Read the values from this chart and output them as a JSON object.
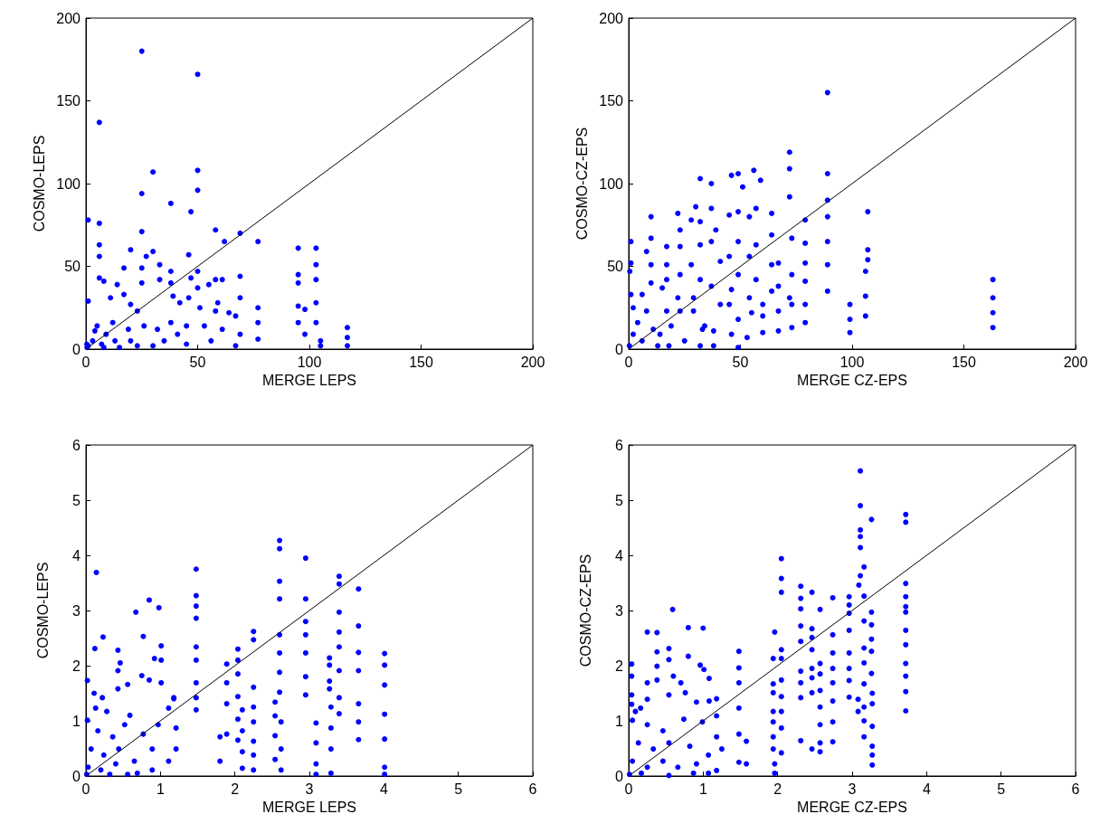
{
  "chart_data": [
    {
      "type": "scatter",
      "xlabel": "MERGE LEPS",
      "ylabel": "COSMO-LEPS",
      "xlim": [
        0,
        200
      ],
      "ylim": [
        0,
        200
      ],
      "xticks": [
        0,
        50,
        100,
        150,
        200
      ],
      "yticks": [
        0,
        50,
        100,
        150,
        200
      ],
      "grid": false,
      "series": [
        {
          "marker": "circle",
          "color": "#0000ff",
          "x": [
            25,
            50,
            6,
            50,
            30,
            25,
            38,
            50,
            47,
            1,
            6,
            69,
            77,
            62,
            58,
            95,
            103,
            103,
            95,
            103,
            95,
            103,
            95,
            98,
            103,
            105,
            117,
            117,
            117,
            77,
            77,
            69,
            69,
            67,
            67,
            58,
            61,
            58,
            55,
            50,
            50,
            47,
            46,
            38,
            38,
            33,
            33,
            30,
            27,
            25,
            25,
            25,
            20,
            17,
            14,
            6,
            8,
            6,
            6,
            1,
            11,
            17,
            20,
            23,
            39,
            42,
            46,
            51,
            59,
            64,
            56,
            45,
            35,
            30,
            20,
            15,
            9,
            5,
            3,
            1,
            7,
            12,
            19,
            26,
            32,
            38,
            41,
            45,
            53,
            61,
            69,
            77,
            95,
            98,
            105,
            4,
            0.5,
            0.4,
            8,
            13,
            23
          ],
          "values": [
            180,
            166,
            137,
            108,
            107,
            94,
            88,
            96,
            83,
            78,
            76,
            70,
            65,
            65,
            72,
            61,
            61,
            51,
            45,
            42,
            40,
            28,
            26,
            24,
            16,
            5,
            13,
            2,
            7,
            25,
            6,
            44,
            31,
            20,
            2,
            42,
            42,
            23,
            39,
            47,
            37,
            43,
            57,
            47,
            40,
            51,
            42,
            59,
            56,
            71,
            49,
            40,
            60,
            49,
            39,
            43,
            41,
            56,
            63,
            29,
            31,
            33,
            27,
            23,
            32,
            28,
            31,
            25,
            28,
            22,
            5,
            3,
            5,
            2,
            5,
            1,
            9,
            14,
            5,
            2,
            3,
            16,
            12,
            14,
            12,
            16,
            9,
            14,
            14,
            12,
            9,
            16,
            16,
            9,
            2,
            11,
            1,
            3,
            1,
            5,
            2
          ]
        },
        {
          "type": "line",
          "color": "#000000",
          "line_style": "solid",
          "x": [
            0,
            200
          ],
          "values": [
            0,
            200
          ]
        }
      ]
    },
    {
      "type": "scatter",
      "xlabel": "MERGE CZ-EPS",
      "ylabel": "COSMO-CZ-EPS",
      "xlim": [
        0,
        200
      ],
      "ylim": [
        0,
        200
      ],
      "xticks": [
        0,
        50,
        100,
        150,
        200
      ],
      "yticks": [
        0,
        50,
        100,
        150,
        200
      ],
      "grid": false,
      "series": [
        {
          "marker": "circle",
          "color": "#0000ff",
          "x": [
            89,
            72,
            72,
            89,
            46,
            49,
            56,
            59,
            32,
            37,
            51,
            72,
            89,
            30,
            22,
            10,
            107,
            107,
            107,
            106,
            106,
            106,
            99,
            99,
            99,
            163,
            163,
            163,
            163,
            89,
            89,
            89,
            89,
            79,
            79,
            79,
            79,
            79,
            79,
            73,
            73,
            73,
            73,
            67,
            67,
            67,
            67,
            64,
            64,
            64,
            64,
            60,
            60,
            57,
            57,
            57,
            54,
            54,
            54,
            53,
            49,
            49,
            49,
            49,
            49,
            45,
            45,
            45,
            46,
            39,
            41,
            37,
            37,
            37,
            38,
            38,
            32,
            32,
            32,
            33,
            28,
            28,
            29,
            23,
            23,
            23,
            23,
            17,
            17,
            17,
            15,
            14,
            10,
            10,
            10,
            8,
            1,
            1,
            0.5,
            1,
            6,
            2,
            8,
            4,
            2,
            0.3,
            6,
            11,
            13,
            19,
            25,
            32,
            17,
            22,
            29,
            34,
            41,
            46,
            55,
            60,
            72,
            18
          ],
          "values": [
            155,
            119,
            109,
            106,
            105,
            106,
            108,
            102,
            103,
            100,
            98,
            92,
            90,
            86,
            82,
            80,
            83,
            60,
            54,
            47,
            32,
            20,
            27,
            18,
            10,
            42,
            31,
            22,
            13,
            80,
            65,
            51,
            35,
            78,
            64,
            52,
            41,
            27,
            16,
            67,
            45,
            27,
            13,
            52,
            38,
            23,
            11,
            82,
            69,
            51,
            35,
            10,
            27,
            85,
            63,
            42,
            80,
            56,
            31,
            7,
            83,
            65,
            45,
            18,
            1,
            81,
            56,
            27,
            9,
            72,
            53,
            85,
            65,
            38,
            11,
            2,
            77,
            63,
            42,
            12,
            78,
            51,
            23,
            72,
            62,
            45,
            23,
            62,
            51,
            42,
            37,
            9,
            67,
            51,
            40,
            59,
            65,
            52,
            47,
            33,
            33,
            25,
            23,
            16,
            9,
            2,
            5,
            12,
            2,
            14,
            5,
            2,
            23,
            31,
            31,
            14,
            27,
            36,
            22,
            20,
            31,
            2
          ]
        },
        {
          "type": "line",
          "color": "#000000",
          "line_style": "solid",
          "x": [
            0,
            200
          ],
          "values": [
            0,
            200
          ]
        }
      ]
    },
    {
      "type": "scatter",
      "xlabel": "MERGE LEPS",
      "ylabel": "COSMO-LEPS",
      "xlim": [
        0,
        6
      ],
      "ylim": [
        0,
        6
      ],
      "xticks": [
        0,
        1,
        2,
        3,
        4,
        5,
        6
      ],
      "yticks": [
        0,
        1,
        2,
        3,
        4,
        5,
        6
      ],
      "grid": false,
      "series": [
        {
          "marker": "circle",
          "color": "#0000ff",
          "x": [
            2.6,
            2.6,
            2.95,
            0.14,
            1.48,
            3.4,
            3.4,
            3.66,
            2.6,
            2.6,
            2.95,
            0.85,
            0.98,
            0.67,
            1.48,
            1.48,
            1.48,
            3.4,
            3.66,
            2.95,
            2.95,
            2.95,
            2.95,
            2.95,
            3.4,
            3.4,
            3.4,
            3.4,
            3.4,
            3.66,
            3.66,
            3.66,
            3.66,
            3.66,
            4.01,
            4.01,
            4.01,
            4.01,
            4.01,
            4.01,
            4.01,
            3.27,
            3.27,
            3.27,
            3.27,
            3.29,
            3.29,
            3.29,
            3.29,
            3.09,
            3.09,
            3.09,
            3.09,
            2.6,
            2.6,
            2.6,
            2.6,
            2.62,
            2.62,
            2.62,
            2.54,
            2.54,
            2.54,
            2.54,
            2.25,
            2.25,
            2.25,
            2.25,
            2.25,
            2.25,
            2.25,
            2.25,
            2.04,
            2.04,
            2.04,
            2.04,
            2.04,
            2.04,
            2.1,
            2.1,
            2.1,
            2.1,
            1.89,
            1.89,
            1.89,
            1.89,
            1.8,
            1.8,
            1.48,
            1.48,
            1.48,
            1.48,
            1.48,
            1.18,
            1.21,
            1.21,
            1.11,
            0.23,
            0.12,
            0.43,
            0.46,
            0.77,
            0.92,
            1.01,
            1.01,
            0.43,
            0.43,
            0.56,
            0.75,
            0.85,
            1.01,
            0.02,
            0.11,
            0.22,
            0.13,
            0.28,
            0.59,
            1.11,
            1.18,
            0.02,
            0.16,
            0.36,
            0.52,
            0.77,
            0.97,
            0.07,
            0.24,
            0.44,
            0.65,
            0.89,
            0.03,
            0.2,
            0.4,
            0.69,
            0.89,
            0.01,
            0.32,
            0.56
          ],
          "values": [
            4.27,
            4.12,
            3.95,
            3.69,
            3.75,
            3.62,
            3.48,
            3.39,
            3.53,
            3.21,
            3.21,
            3.19,
            3.05,
            2.97,
            3.27,
            3.08,
            2.86,
            2.97,
            2.72,
            2.8,
            2.56,
            2.23,
            1.8,
            1.47,
            2.61,
            2.34,
            1.91,
            1.42,
            1.13,
            2.24,
            1.91,
            1.31,
            0.98,
            0.66,
            2.22,
            2.01,
            1.65,
            1.12,
            0.67,
            0.16,
            0.03,
            2.14,
            2.01,
            1.72,
            1.58,
            1.25,
            0.87,
            0.49,
            0.05,
            0.96,
            0.6,
            0.22,
            0.03,
            2.56,
            2.23,
            1.88,
            1.52,
            0.98,
            0.49,
            0.11,
            1.34,
            1.09,
            0.73,
            0.3,
            2.62,
            2.47,
            1.61,
            1.25,
            0.98,
            0.63,
            0.38,
            0.11,
            2.3,
            2.1,
            1.85,
            1.44,
            1.03,
            0.65,
            1.2,
            0.82,
            0.44,
            0.14,
            2.03,
            1.69,
            1.31,
            0.76,
            0.71,
            0.27,
            2.34,
            2.1,
            1.69,
            1.42,
            1.2,
            1.4,
            0.87,
            0.49,
            0.27,
            2.52,
            2.31,
            2.28,
            2.05,
            2.53,
            2.13,
            2.36,
            2.1,
            1.91,
            1.58,
            1.66,
            1.82,
            1.74,
            1.69,
            1.73,
            1.5,
            1.42,
            1.23,
            1.17,
            1.1,
            1.23,
            1.42,
            1.01,
            0.82,
            0.71,
            0.93,
            0.76,
            0.93,
            0.49,
            0.38,
            0.49,
            0.27,
            0.49,
            0.16,
            0.11,
            0.22,
            0.05,
            0.11,
            0.03,
            0.03,
            0.03
          ]
        },
        {
          "type": "line",
          "color": "#000000",
          "line_style": "solid",
          "x": [
            0,
            6
          ],
          "values": [
            0,
            6
          ]
        }
      ]
    },
    {
      "type": "scatter",
      "xlabel": "MERGE CZ-EPS",
      "ylabel": "COSMO-CZ-EPS",
      "xlim": [
        0,
        6
      ],
      "ylim": [
        0,
        6
      ],
      "xticks": [
        0,
        1,
        2,
        3,
        4,
        5,
        6
      ],
      "yticks": [
        0,
        1,
        2,
        3,
        4,
        5,
        6
      ],
      "grid": false,
      "series": [
        {
          "marker": "circle",
          "color": "#0000ff",
          "x": [
            3.11,
            3.11,
            3.26,
            3.72,
            3.72,
            3.11,
            3.11,
            3.11,
            3.16,
            3.11,
            3.09,
            2.05,
            2.05,
            2.05,
            2.31,
            2.31,
            2.31,
            2.46,
            2.74,
            2.96,
            2.96,
            2.96,
            2.57,
            3.72,
            3.72,
            3.72,
            3.72,
            3.72,
            3.72,
            3.72,
            3.72,
            3.72,
            3.72,
            3.26,
            3.26,
            3.26,
            3.26,
            3.26,
            3.27,
            3.27,
            3.27,
            3.27,
            3.27,
            3.27,
            3.16,
            3.16,
            3.16,
            3.16,
            3.16,
            3.16,
            3.16,
            3.16,
            3.08,
            3.08,
            2.96,
            2.96,
            2.96,
            2.96,
            2.96,
            2.74,
            2.74,
            2.74,
            2.74,
            2.74,
            2.74,
            2.74,
            2.57,
            2.57,
            2.57,
            2.57,
            2.57,
            2.57,
            2.57,
            2.46,
            2.46,
            2.46,
            2.46,
            2.46,
            2.46,
            2.46,
            2.31,
            2.31,
            2.31,
            2.31,
            2.31,
            2.31,
            2.05,
            2.05,
            2.05,
            2.05,
            2.05,
            2.05,
            2.05,
            1.96,
            1.94,
            1.94,
            1.94,
            1.94,
            1.94,
            1.94,
            1.94,
            1.96,
            1.96,
            1.48,
            1.48,
            1.48,
            1.48,
            1.48,
            1.48,
            1.58,
            1.58,
            0.59,
            0.25,
            0.38,
            0.8,
            1,
            0.54,
            0.54,
            0.38,
            0.38,
            0.38,
            0.04,
            0.04,
            0.25,
            0.25,
            0.8,
            0.96,
            1.01,
            1.08,
            0.6,
            0.7,
            0.76,
            0.54,
            0.04,
            0.04,
            1.18,
            1.18,
            1.08,
            0.91,
            0.16,
            0.09,
            0.05,
            0.25,
            0.46,
            0.74,
            0.99,
            1.18,
            1.25,
            1.18,
            0.13,
            0.33,
            0.54,
            0.82,
            1.07,
            0.05,
            0.25,
            0.46,
            0.66,
            0.91,
            1.07,
            0.01,
            0.17,
            0.54,
            0.87
          ],
          "values": [
            5.53,
            4.9,
            4.65,
            4.74,
            4.6,
            4.46,
            4.34,
            4.14,
            3.79,
            3.63,
            3.46,
            3.94,
            3.58,
            3.33,
            3.44,
            3.22,
            3.03,
            3.33,
            3.23,
            3.25,
            3.1,
            2.95,
            3.02,
            3.49,
            3.25,
            3.07,
            2.97,
            2.64,
            2.38,
            2.04,
            1.81,
            1.53,
            1.18,
            2.97,
            2.74,
            2.48,
            2.26,
            1.86,
            1.5,
            1.31,
            0.9,
            0.54,
            0.38,
            0.2,
            3.26,
            2.81,
            2.32,
            2.05,
            1.67,
            1.25,
            1,
            0.71,
            1.17,
            1.39,
            2.64,
            2.23,
            1.95,
            1.73,
            1.43,
            2.56,
            2.23,
            1.95,
            1.69,
            1.36,
            0.98,
            0.62,
            2.04,
            1.85,
            1.55,
            1.25,
            0.93,
            0.6,
            0.44,
            2.67,
            2.51,
            2.29,
            1.95,
            1.78,
            1.51,
            0.49,
            2.72,
            2.44,
            1.9,
            1.69,
            1.42,
            0.64,
            2.29,
            2.13,
            1.74,
            1.44,
            1.17,
            0.87,
            0.42,
            2.61,
            2.13,
            1.67,
            1.51,
            1.17,
            0.98,
            0.71,
            0.49,
            0.22,
            0.05,
            2.26,
            1.96,
            1.69,
            1.23,
            0.76,
            0.25,
            0.63,
            0.22,
            3.02,
            2.61,
            2.6,
            2.69,
            2.68,
            2.31,
            2.11,
            2.25,
            1.99,
            1.74,
            2.03,
            1.81,
            1.69,
            1.39,
            2.17,
            2.01,
            1.93,
            1.77,
            1.81,
            1.69,
            1.51,
            1.47,
            1.47,
            1.3,
            1.4,
            1.09,
            1.36,
            1.34,
            1.23,
            1.17,
            1.01,
            0.93,
            0.82,
            1.03,
            0.98,
            0.71,
            0.49,
            0.1,
            0.6,
            0.49,
            0.6,
            0.54,
            0.38,
            0.27,
            0.16,
            0.27,
            0.16,
            0.22,
            0.05,
            0.03,
            0.05,
            0.01,
            0.05
          ]
        },
        {
          "type": "line",
          "color": "#000000",
          "line_style": "solid",
          "x": [
            0,
            6
          ],
          "values": [
            0,
            6
          ]
        }
      ]
    }
  ]
}
